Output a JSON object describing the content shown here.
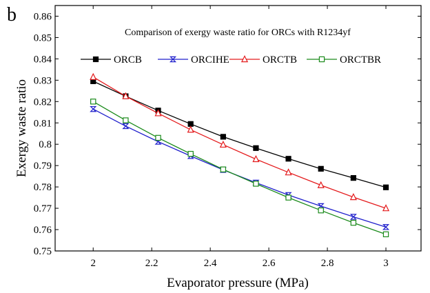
{
  "panel_label": "b",
  "chart_data": {
    "type": "line",
    "title": "Comparison of exergy waste ratio for ORCs with R1234yf",
    "xlabel": "Evaporator pressure (MPa)",
    "ylabel": "Exergy waste ratio",
    "xlim": [
      1.87,
      3.12
    ],
    "ylim": [
      0.75,
      0.865
    ],
    "xticks": [
      2,
      2.2,
      2.4,
      2.6,
      2.8,
      3
    ],
    "xtick_labels": [
      "2",
      "2.2",
      "2.4",
      "2.6",
      "2.8",
      "3"
    ],
    "yticks": [
      0.75,
      0.76,
      0.77,
      0.78,
      0.79,
      0.8,
      0.81,
      0.82,
      0.83,
      0.84,
      0.85,
      0.86
    ],
    "ytick_labels": [
      "0.75",
      "0.76",
      "0.77",
      "0.78",
      "0.79",
      "0.8",
      "0.81",
      "0.82",
      "0.83",
      "0.84",
      "0.85",
      "0.86"
    ],
    "grid": false,
    "legend_position": "top",
    "x": [
      2,
      2.111,
      2.222,
      2.333,
      2.444,
      2.556,
      2.667,
      2.778,
      2.889,
      3
    ],
    "series": [
      {
        "name": "ORCB",
        "color": "#000000",
        "marker": "filled-square",
        "values": [
          0.8295,
          0.8225,
          0.8158,
          0.8095,
          0.8035,
          0.7982,
          0.7932,
          0.7885,
          0.7842,
          0.7798
        ]
      },
      {
        "name": "ORCIHE",
        "color": "#1f1fcc",
        "marker": "hourglass",
        "values": [
          0.8165,
          0.8085,
          0.8012,
          0.7945,
          0.788,
          0.782,
          0.7762,
          0.771,
          0.766,
          0.7612
        ]
      },
      {
        "name": "ORCTB",
        "color": "#e41a1c",
        "marker": "open-triangle",
        "values": [
          0.8315,
          0.8225,
          0.8145,
          0.8068,
          0.7998,
          0.793,
          0.7868,
          0.7808,
          0.7752,
          0.77
        ]
      },
      {
        "name": "ORCTBR",
        "color": "#1a8a1a",
        "marker": "open-square",
        "values": [
          0.82,
          0.8112,
          0.803,
          0.7955,
          0.7882,
          0.7815,
          0.775,
          0.769,
          0.7632,
          0.7578
        ]
      }
    ]
  }
}
